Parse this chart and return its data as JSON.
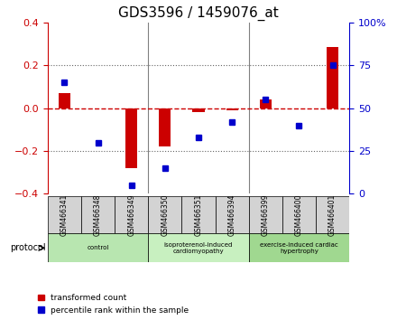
{
  "title": "GDS3596 / 1459076_at",
  "samples": [
    "GSM466341",
    "GSM466348",
    "GSM466349",
    "GSM466350",
    "GSM466351",
    "GSM466394",
    "GSM466399",
    "GSM466400",
    "GSM466401"
  ],
  "red_values": [
    0.07,
    0.0,
    -0.28,
    -0.18,
    -0.02,
    -0.01,
    0.04,
    0.0,
    0.285
  ],
  "blue_values": [
    65,
    30,
    5,
    15,
    33,
    42,
    55,
    40,
    75
  ],
  "ylim_left": [
    -0.4,
    0.4
  ],
  "ylim_right": [
    0,
    100
  ],
  "groups": [
    {
      "label": "control",
      "start": 0,
      "end": 2,
      "color": "#c8e6c9"
    },
    {
      "label": "isoproterenol-induced\ncardiomyopathy",
      "start": 3,
      "end": 5,
      "color": "#c8e6c9"
    },
    {
      "label": "exercise-induced cardiac\nhypertrophy",
      "start": 6,
      "end": 8,
      "color": "#a5d6a7"
    }
  ],
  "red_color": "#cc0000",
  "blue_color": "#0000cc",
  "dashed_line_color": "#cc0000",
  "dotted_line_color": "#666666",
  "bar_width": 0.35,
  "legend_red": "transformed count",
  "legend_blue": "percentile rank within the sample",
  "protocol_label": "protocol",
  "xlabel_rotation": -90,
  "grid_color": "#aaaaaa",
  "bg_color": "#ffffff",
  "plot_bg_color": "#ffffff",
  "right_axis_color": "#0000cc",
  "left_axis_color": "#cc0000",
  "yticks_left": [
    -0.4,
    -0.2,
    0.0,
    0.2,
    0.4
  ],
  "yticks_right": [
    0,
    25,
    50,
    75,
    100
  ],
  "ytick_labels_right": [
    "0",
    "25",
    "50",
    "75",
    "100%"
  ]
}
